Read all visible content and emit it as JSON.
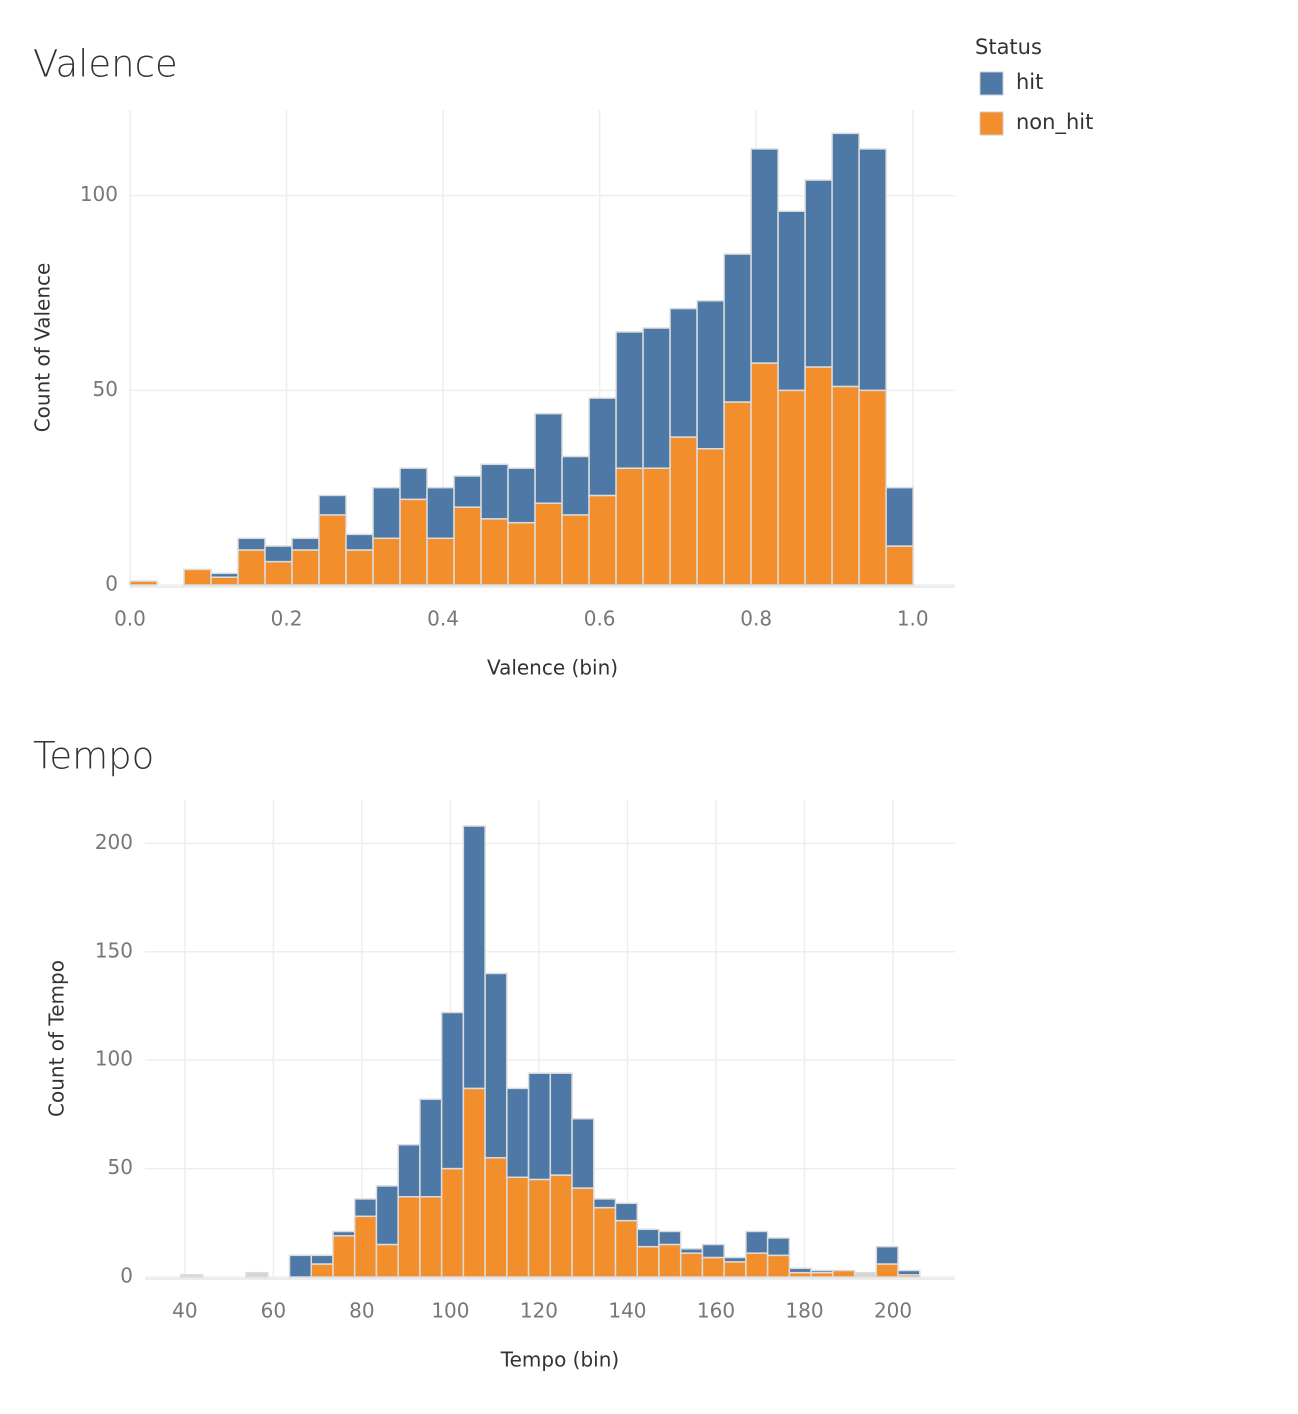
{
  "chart_data": [
    {
      "type": "histogram",
      "title": "Valence",
      "x_label": "Valence (bin)",
      "y_label": "Count of Valence",
      "legend": "right",
      "legend_title": "Status",
      "bins": [
        0,
        0.0345,
        0.069,
        0.1035,
        0.138,
        0.1725,
        0.207,
        0.2415,
        0.276,
        0.3105,
        0.345,
        0.3795,
        0.414,
        0.4485,
        0.483,
        0.5175,
        0.552,
        0.5865,
        0.621,
        0.6555,
        0.69,
        0.7245,
        0.759,
        0.7935,
        0.828,
        0.8625,
        0.897,
        0.9315,
        0.966,
        1.0005
      ],
      "series": [
        {
          "name": "hit",
          "color": "#4e79a7",
          "values": [
            0,
            0,
            0,
            1,
            3,
            4,
            3,
            5,
            4,
            13,
            8,
            13,
            8,
            14,
            14,
            23,
            15,
            25,
            35,
            36,
            33,
            38,
            38,
            55,
            46,
            48,
            65,
            62,
            15
          ]
        },
        {
          "name": "non_hit",
          "color": "#f28e2b",
          "values": [
            1,
            0,
            4,
            2,
            9,
            6,
            9,
            18,
            9,
            12,
            22,
            12,
            20,
            17,
            16,
            21,
            18,
            23,
            30,
            30,
            38,
            35,
            47,
            57,
            50,
            56,
            51,
            50,
            10
          ]
        }
      ],
      "xlim": [
        0,
        1.054
      ],
      "ylim": [
        0,
        122
      ],
      "xticks": [
        {
          "value": 0,
          "label": "0.0"
        },
        0.2,
        0.4,
        0.6,
        0.8,
        {
          "value": 1,
          "label": "1.0"
        }
      ],
      "yticks": [
        0,
        50,
        100
      ],
      "grid": true
    },
    {
      "type": "histogram",
      "title": "Tempo",
      "x_label": "Tempo (bin)",
      "y_label": "Count of Tempo",
      "bins": [
        39.1,
        44.01,
        48.92,
        53.83,
        58.74,
        63.65,
        68.56,
        73.47,
        78.38,
        83.29,
        88.2,
        93.11,
        98.02,
        102.93,
        107.84,
        112.75,
        117.66,
        122.57,
        127.48,
        132.39,
        137.3,
        142.21,
        147.12,
        152.03,
        156.94,
        161.85,
        166.76,
        171.67,
        176.58,
        181.49,
        186.4,
        191.31,
        196.22,
        201.13,
        206.04
      ],
      "series": [
        {
          "color": "#4e79a7",
          "values": [
            0,
            0,
            0,
            0,
            0,
            10,
            4,
            2,
            8,
            27,
            24,
            45,
            72,
            121,
            85,
            41,
            49,
            47,
            32,
            4,
            8,
            8,
            6,
            2,
            6,
            2,
            10,
            8,
            2,
            1,
            0,
            0,
            8,
            2
          ]
        },
        {
          "color": "#f28e2b",
          "values": [
            0,
            0,
            0,
            0,
            0,
            0,
            6,
            19,
            28,
            15,
            37,
            37,
            50,
            87,
            55,
            46,
            45,
            47,
            41,
            32,
            26,
            14,
            15,
            11,
            9,
            7,
            11,
            10,
            2,
            2,
            3,
            0,
            6,
            1
          ]
        },
        {
          "color": "#d4d4d4",
          "values": [
            1,
            0,
            0,
            2,
            0,
            0,
            0,
            0,
            0,
            0,
            0,
            0,
            0,
            0,
            0,
            0,
            0,
            0,
            0,
            0,
            0,
            0,
            0,
            0,
            0,
            0,
            0,
            0,
            0,
            0,
            0,
            2,
            0,
            0
          ]
        }
      ],
      "xlim": [
        31,
        214
      ],
      "ylim": [
        0,
        220
      ],
      "xticks": [
        40,
        60,
        80,
        100,
        120,
        140,
        160,
        180,
        200
      ],
      "yticks": [
        0,
        50,
        100,
        150,
        200
      ],
      "grid": true
    }
  ]
}
